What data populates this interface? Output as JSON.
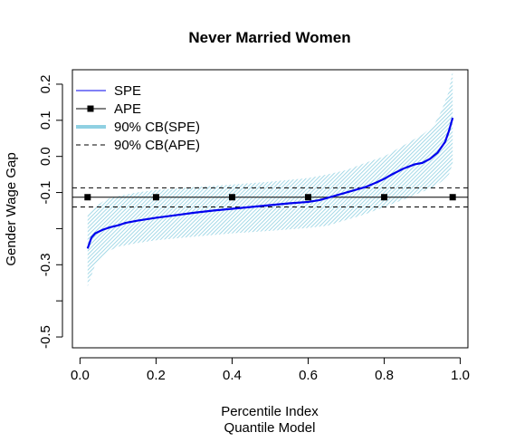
{
  "chart_data": {
    "type": "line",
    "title": "Never Married Women",
    "xlabel": "Percentile Index",
    "xlabel2": "Quantile Model",
    "ylabel": "Gender Wage Gap",
    "xlim": [
      -0.02,
      1.02
    ],
    "ylim": [
      -0.53,
      0.24
    ],
    "xticks": [
      0.0,
      0.2,
      0.4,
      0.6,
      0.8,
      1.0
    ],
    "xtick_labels": [
      "0.0",
      "0.2",
      "0.4",
      "0.6",
      "0.8",
      "1.0"
    ],
    "yticks": [
      -0.5,
      -0.4,
      -0.3,
      -0.2,
      -0.1,
      0.0,
      0.1,
      0.2
    ],
    "ytick_labels": [
      "-0.5",
      "",
      "-0.3",
      "",
      "-0.1",
      "0.0",
      "0.1",
      "0.2"
    ],
    "legend_position": "top-left",
    "grid": false,
    "colors": {
      "spe": "#0000ee",
      "ape": "#000000",
      "band": "#8fd0e2"
    },
    "series": [
      {
        "name": "SPE",
        "x": [
          0.02,
          0.03,
          0.04,
          0.06,
          0.08,
          0.1,
          0.12,
          0.15,
          0.2,
          0.25,
          0.3,
          0.35,
          0.4,
          0.45,
          0.5,
          0.55,
          0.6,
          0.63,
          0.65,
          0.7,
          0.75,
          0.78,
          0.8,
          0.82,
          0.85,
          0.88,
          0.9,
          0.92,
          0.94,
          0.96,
          0.97,
          0.98
        ],
        "values": [
          -0.255,
          -0.225,
          -0.213,
          -0.203,
          -0.196,
          -0.191,
          -0.184,
          -0.178,
          -0.17,
          -0.163,
          -0.156,
          -0.15,
          -0.145,
          -0.14,
          -0.135,
          -0.13,
          -0.126,
          -0.121,
          -0.115,
          -0.1,
          -0.085,
          -0.072,
          -0.062,
          -0.05,
          -0.034,
          -0.022,
          -0.018,
          -0.007,
          0.01,
          0.04,
          0.07,
          0.107
        ]
      },
      {
        "name": "APE",
        "x": [
          0.02,
          0.2,
          0.4,
          0.6,
          0.8,
          0.98
        ],
        "values": [
          -0.113,
          -0.113,
          -0.113,
          -0.113,
          -0.113,
          -0.113
        ]
      },
      {
        "name": "90% CB(SPE)",
        "x": [
          0.02,
          0.03,
          0.04,
          0.06,
          0.08,
          0.1,
          0.15,
          0.2,
          0.3,
          0.4,
          0.5,
          0.6,
          0.65,
          0.7,
          0.75,
          0.8,
          0.85,
          0.9,
          0.93,
          0.95,
          0.97,
          0.98
        ],
        "upper": [
          -0.16,
          -0.15,
          -0.14,
          -0.125,
          -0.115,
          -0.11,
          -0.1,
          -0.093,
          -0.085,
          -0.078,
          -0.07,
          -0.06,
          -0.05,
          -0.038,
          -0.018,
          0.0,
          0.03,
          0.06,
          0.085,
          0.125,
          0.18,
          0.24
        ],
        "lower": [
          -0.36,
          -0.33,
          -0.3,
          -0.275,
          -0.26,
          -0.25,
          -0.24,
          -0.232,
          -0.222,
          -0.213,
          -0.206,
          -0.198,
          -0.192,
          -0.176,
          -0.16,
          -0.14,
          -0.12,
          -0.098,
          -0.085,
          -0.07,
          -0.05,
          -0.02
        ]
      },
      {
        "name": "90% CB(APE)",
        "upper": -0.087,
        "lower": -0.14
      }
    ]
  }
}
